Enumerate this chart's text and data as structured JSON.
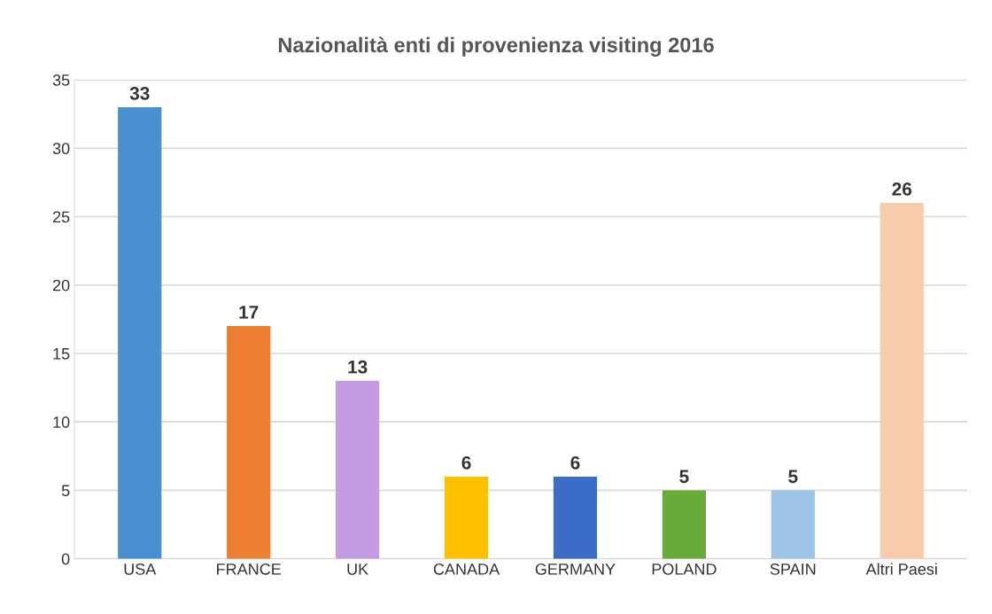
{
  "chart_data": {
    "type": "bar",
    "title": "Nazionalità enti di provenienza visiting 2016",
    "categories": [
      "USA",
      "FRANCE",
      "UK",
      "CANADA",
      "GERMANY",
      "POLAND",
      "SPAIN",
      "Altri Paesi"
    ],
    "values": [
      33,
      17,
      13,
      6,
      6,
      5,
      5,
      26
    ],
    "colors": [
      "#4a90d0",
      "#ed7d31",
      "#c39be3",
      "#ffc000",
      "#3a6cc8",
      "#6aaa3a",
      "#9dc3e6",
      "#f8cbad"
    ],
    "ylim": [
      0,
      35
    ],
    "yticks": [
      0,
      5,
      10,
      15,
      20,
      25,
      30,
      35
    ],
    "grid": "y",
    "data_labels": true
  }
}
